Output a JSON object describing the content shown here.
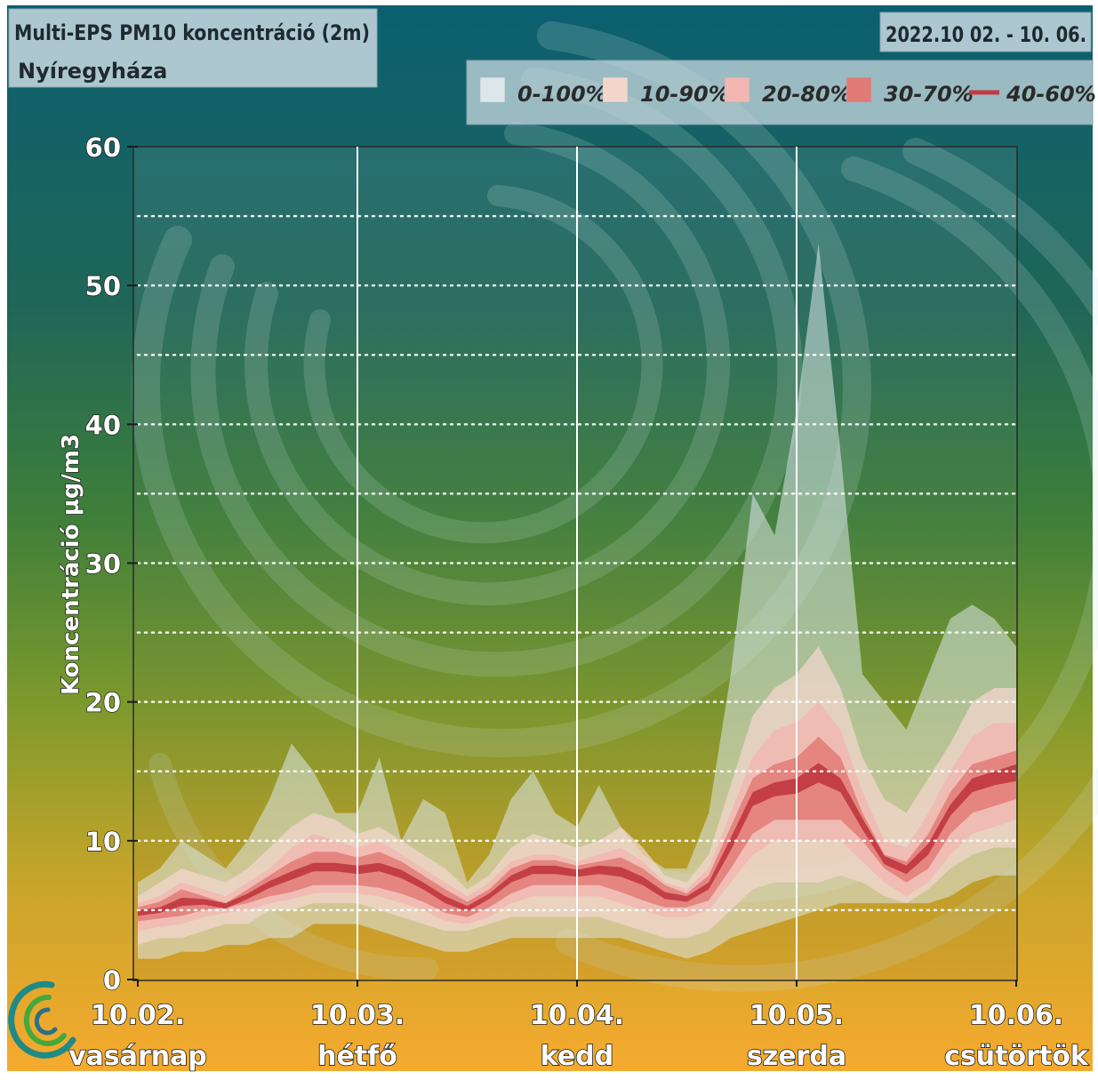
{
  "header": {
    "title": "Multi-EPS PM10 koncentráció (2m)",
    "location": "Nyíregyháza",
    "date_range": "2022.10 02. - 10. 06."
  },
  "legend": {
    "items": [
      {
        "label": "0-100%",
        "color": "#dde7ea"
      },
      {
        "label": "10-90%",
        "color": "#f2d6cc"
      },
      {
        "label": "20-80%",
        "color": "#f1b7b0"
      },
      {
        "label": "30-70%",
        "color": "#e27b77"
      },
      {
        "label": "40-60%",
        "color": "#c23a41"
      }
    ]
  },
  "chart_data": {
    "type": "area",
    "ylabel": "Koncentráció µg/m3",
    "ylim": [
      0,
      60
    ],
    "y_ticks": [
      "0",
      "10",
      "20",
      "30",
      "40",
      "50",
      "60"
    ],
    "grid": "dotted horizontal every 5, vertical lines at day boundaries",
    "x_days": [
      {
        "date": "10.02.",
        "day": "vasárnap"
      },
      {
        "date": "10.03.",
        "day": "hétfő"
      },
      {
        "date": "10.04.",
        "day": "kedd"
      },
      {
        "date": "10.05.",
        "day": "szerda"
      },
      {
        "date": "10.06.",
        "day": "csütörtök"
      }
    ],
    "x_unit": "days since 10.02. 00:00",
    "x": [
      0,
      0.1,
      0.2,
      0.3,
      0.4,
      0.5,
      0.6,
      0.7,
      0.8,
      0.9,
      1.0,
      1.1,
      1.2,
      1.3,
      1.4,
      1.5,
      1.6,
      1.7,
      1.8,
      1.9,
      2.0,
      2.1,
      2.2,
      2.3,
      2.4,
      2.5,
      2.6,
      2.7,
      2.8,
      2.9,
      3.0,
      3.1,
      3.2,
      3.3,
      3.4,
      3.5,
      3.6,
      3.7,
      3.8,
      3.9,
      4.0
    ],
    "series": [
      {
        "name": "0-100%",
        "low": [
          1.5,
          1.5,
          2,
          2,
          2.5,
          2.5,
          3,
          3,
          4,
          4,
          4,
          3.5,
          3,
          2.5,
          2,
          2,
          2.5,
          3,
          3,
          3,
          3,
          3,
          3,
          2.5,
          2,
          1.5,
          2,
          3,
          3.5,
          4,
          4.5,
          5,
          5.5,
          5.5,
          5.5,
          5.5,
          5.5,
          6,
          7,
          7.5,
          7.5
        ],
        "high": [
          7,
          8,
          10,
          9,
          8,
          10,
          13,
          17,
          15,
          12,
          12,
          16,
          10,
          13,
          12,
          7,
          9,
          13,
          15,
          12,
          11,
          14,
          11,
          9,
          8,
          8,
          12,
          22,
          35,
          32,
          41,
          53,
          38,
          22,
          20,
          18,
          22,
          26,
          27,
          26,
          24
        ]
      },
      {
        "name": "10-90%",
        "low": [
          2.5,
          3,
          3,
          3.5,
          4,
          4,
          5,
          5,
          5.5,
          5.5,
          5.5,
          5,
          4.5,
          4,
          3.5,
          3.5,
          4,
          4.5,
          4.5,
          4.5,
          4.5,
          4.5,
          4,
          3.5,
          3,
          3,
          3.5,
          5,
          6.5,
          7,
          7,
          7,
          7.5,
          7,
          6,
          5.5,
          6.5,
          8,
          9,
          9.5,
          9.5
        ],
        "high": [
          6,
          7,
          8,
          7.5,
          7,
          8,
          9.5,
          11,
          12,
          11.5,
          10.5,
          11,
          10,
          9,
          8,
          6.5,
          7.5,
          9.5,
          10.5,
          10,
          9.5,
          10,
          11,
          9.5,
          7.5,
          7,
          9,
          14,
          19,
          21,
          22,
          24,
          21,
          16,
          13,
          12,
          14.5,
          17,
          20,
          21,
          21
        ]
      },
      {
        "name": "20-80%",
        "low": [
          3.5,
          3.8,
          4,
          4.5,
          4.8,
          5,
          5.5,
          5.8,
          6.2,
          6.3,
          6.2,
          6,
          5.5,
          5,
          4.2,
          4,
          4.5,
          5.5,
          6,
          6,
          6,
          6,
          5.5,
          5,
          4.5,
          4.5,
          5,
          7,
          9,
          10,
          10,
          10,
          10,
          8.5,
          7,
          6,
          7,
          9,
          10.5,
          11,
          11.5
        ],
        "high": [
          5.5,
          6,
          7,
          6.5,
          6,
          7,
          8,
          9.5,
          10.5,
          10,
          9.5,
          10,
          9,
          8,
          7,
          6,
          7,
          8.5,
          9,
          9,
          8.5,
          9,
          9.5,
          8.5,
          7,
          6.5,
          8,
          12,
          16,
          18,
          18.5,
          20,
          18,
          13.5,
          10,
          9.5,
          12,
          15,
          17.5,
          18.5,
          18.5
        ]
      },
      {
        "name": "30-70%",
        "low": [
          4.2,
          4.4,
          4.6,
          5,
          5.2,
          5.5,
          6,
          6.3,
          6.8,
          6.8,
          6.8,
          6.6,
          6.2,
          5.6,
          4.8,
          4.5,
          5.2,
          6.2,
          6.8,
          6.8,
          6.8,
          6.8,
          6.3,
          5.7,
          5.2,
          5.2,
          5.7,
          8,
          10.5,
          11.5,
          11.5,
          11.5,
          11.5,
          10,
          8,
          7,
          8,
          10.5,
          12,
          12.5,
          13
        ],
        "high": [
          5.2,
          5.6,
          6.5,
          6,
          5.5,
          6.5,
          7.5,
          8.5,
          9.2,
          9.2,
          8.8,
          9.2,
          8.5,
          7.5,
          6.5,
          5.6,
          6.5,
          8,
          8.6,
          8.6,
          8.2,
          8.5,
          8.8,
          8,
          6.8,
          6.2,
          7.5,
          11,
          14.5,
          15.5,
          16,
          17.5,
          16,
          12,
          9,
          8.5,
          10.5,
          13.5,
          15.5,
          16,
          16.5
        ]
      },
      {
        "name": "40-60%",
        "low": [
          4.6,
          4.8,
          5.3,
          5.4,
          5.1,
          5.8,
          6.6,
          7.2,
          7.8,
          7.8,
          7.6,
          7.8,
          7.3,
          6.5,
          5.5,
          4.9,
          5.8,
          7,
          7.6,
          7.6,
          7.4,
          7.6,
          7.4,
          6.8,
          5.8,
          5.6,
          6.5,
          9.3,
          12.5,
          13.2,
          13.4,
          14.2,
          13.5,
          10.8,
          8.3,
          7.6,
          9,
          11.8,
          13.5,
          14,
          14.3
        ],
        "high": [
          5,
          5.2,
          5.9,
          5.8,
          5.5,
          6.2,
          7.1,
          7.8,
          8.4,
          8.4,
          8.2,
          8.4,
          7.9,
          7,
          6,
          5.3,
          6.2,
          7.5,
          8.2,
          8.2,
          7.9,
          8.2,
          8.1,
          7.4,
          6.3,
          6,
          7,
          10.2,
          13.5,
          14.2,
          14.5,
          15.6,
          14.5,
          11.6,
          8.9,
          8.2,
          9.8,
          12.6,
          14.5,
          15,
          15.5
        ]
      }
    ]
  }
}
